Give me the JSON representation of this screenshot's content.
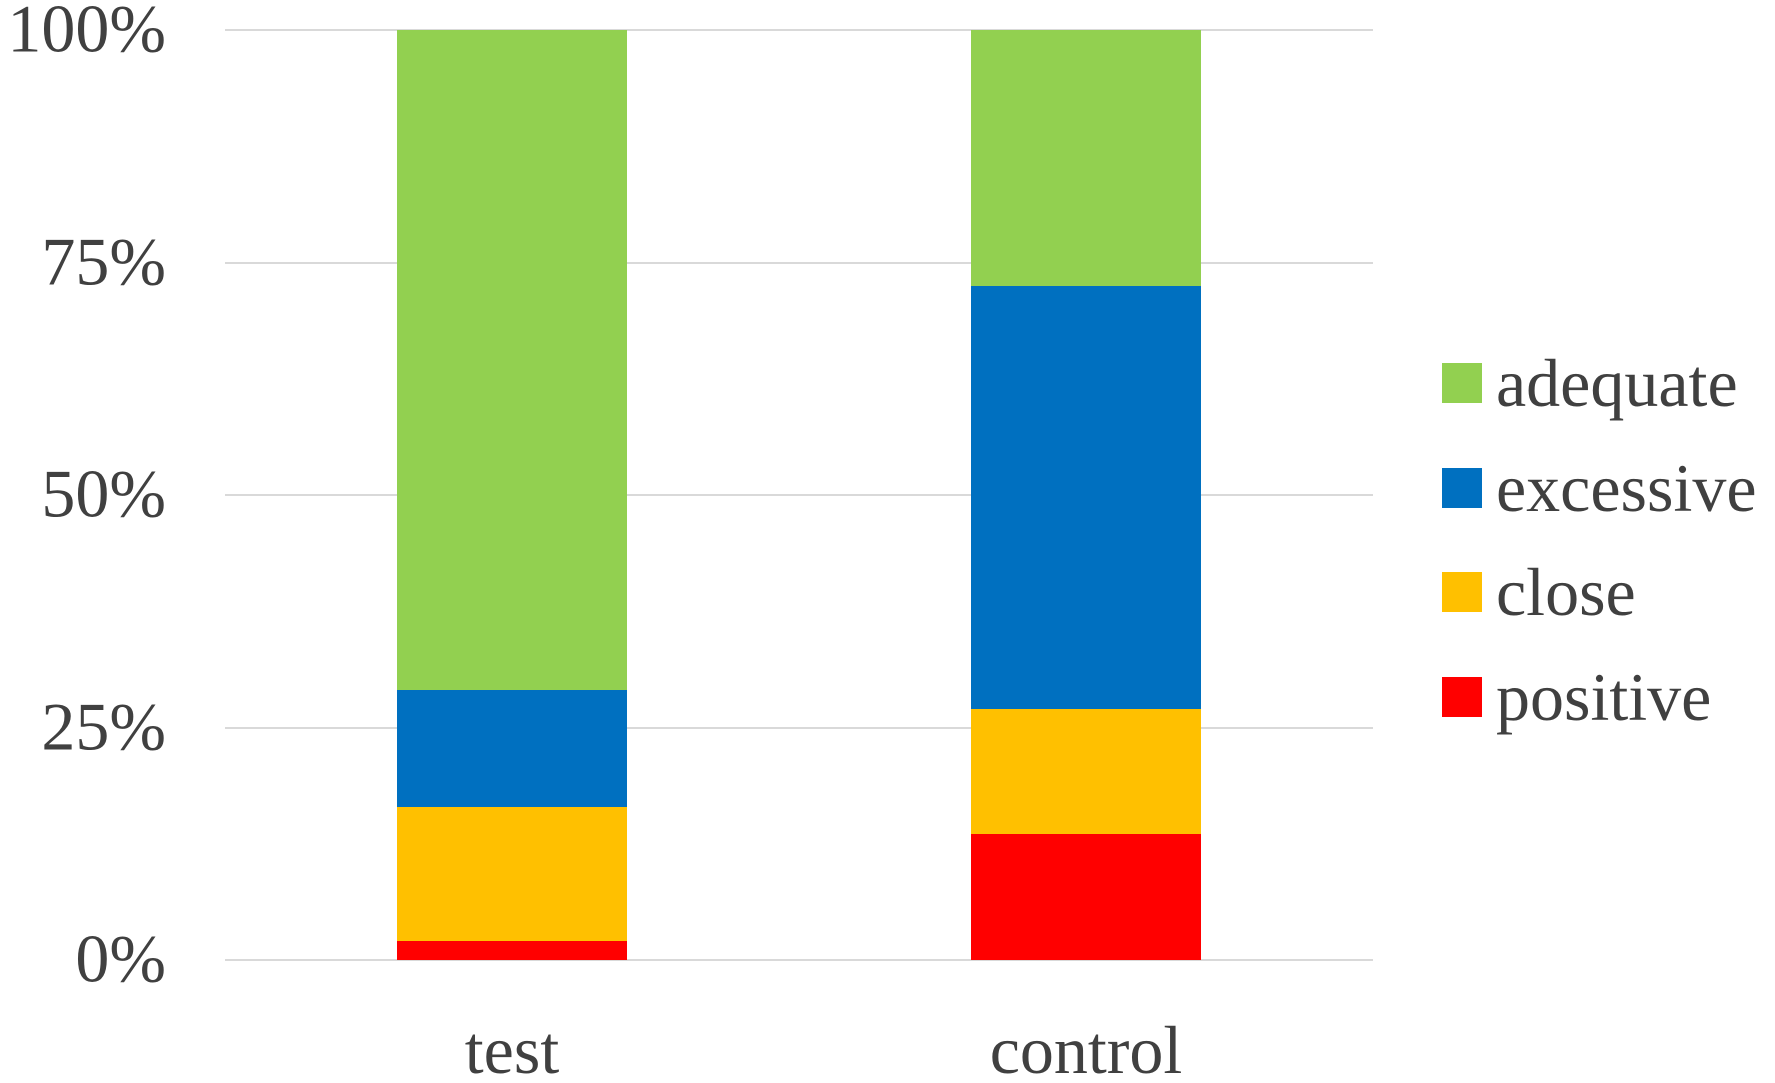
{
  "chart_data": {
    "type": "bar",
    "variant": "stacked-100-percent",
    "title": "",
    "xlabel": "",
    "ylabel": "",
    "categories": [
      "test",
      "control"
    ],
    "series": [
      {
        "name": "adequate",
        "color": "#92D050",
        "values": [
          71,
          27.5
        ]
      },
      {
        "name": "excessive",
        "color": "#0070C0",
        "values": [
          12.5,
          45.5
        ]
      },
      {
        "name": "close",
        "color": "#FFC000",
        "values": [
          14.5,
          13.5
        ]
      },
      {
        "name": "positive",
        "color": "#FF0000",
        "values": [
          2,
          13.5
        ]
      }
    ],
    "stack_order_top_to_bottom": [
      "adequate",
      "excessive",
      "close",
      "positive"
    ],
    "y_ticks": [
      {
        "value": 100,
        "label": "100%"
      },
      {
        "value": 75,
        "label": "75%"
      },
      {
        "value": 50,
        "label": "50%"
      },
      {
        "value": 25,
        "label": "25%"
      },
      {
        "value": 0,
        "label": "0%"
      }
    ],
    "ylim": [
      0,
      100
    ],
    "grid": true,
    "legend": {
      "position": "right",
      "entries": [
        "adequate",
        "excessive",
        "close",
        "positive"
      ]
    }
  },
  "colors": {
    "gridline": "#D9D9D9",
    "axis_text": "#404040",
    "background": "#FFFFFF"
  }
}
